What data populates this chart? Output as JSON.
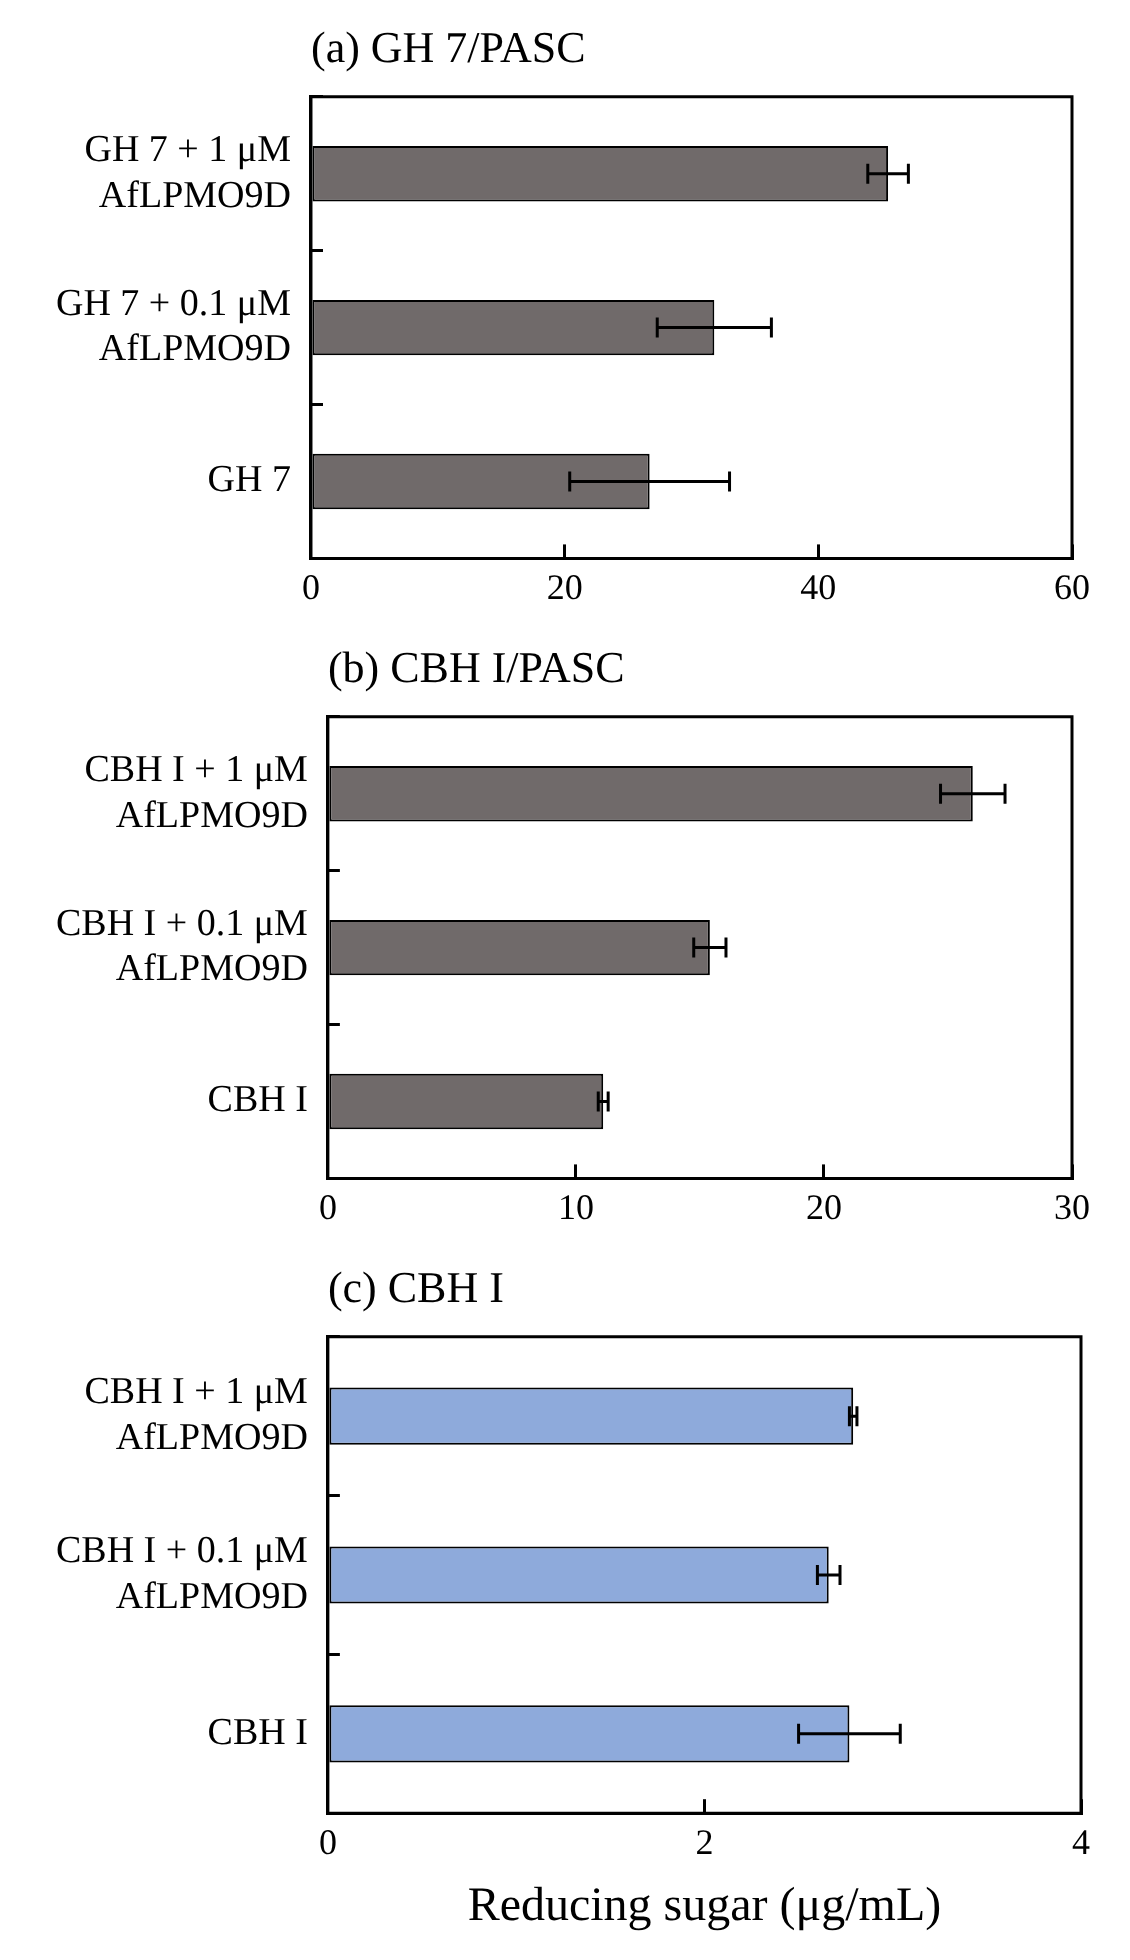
{
  "chart_data": [
    {
      "type": "bar",
      "orientation": "horizontal",
      "title": "(a) GH 7/PASC",
      "categories": [
        "GH 7 + 1 μM AfLPMO9D",
        "GH 7 + 0.1 μM AfLPMO9D",
        "GH 7"
      ],
      "values": [
        45.5,
        31.8,
        26.7
      ],
      "errors": [
        1.6,
        4.5,
        6.3
      ],
      "color": "#706a6a",
      "xlim": [
        0,
        60
      ],
      "xticks": [
        0,
        20,
        40,
        60
      ],
      "grid": false,
      "legend": false
    },
    {
      "type": "bar",
      "orientation": "horizontal",
      "title": "(b) CBH I/PASC",
      "categories": [
        "CBH I + 1 μM AfLPMO9D",
        "CBH I + 0.1 μM AfLPMO9D",
        "CBH I"
      ],
      "values": [
        26.0,
        15.4,
        11.1
      ],
      "errors": [
        1.3,
        0.65,
        0.2
      ],
      "color": "#706a6a",
      "xlim": [
        0,
        30
      ],
      "xticks": [
        0,
        10,
        20,
        30
      ],
      "grid": false,
      "legend": false
    },
    {
      "type": "bar",
      "orientation": "horizontal",
      "title": "(c) CBH I",
      "xlabel": "Reducing sugar (μg/mL)",
      "categories": [
        "CBH I + 1 μM AfLPMO9D",
        "CBH I + 0.1 μM AfLPMO9D",
        "CBH I"
      ],
      "values": [
        2.79,
        2.66,
        2.77
      ],
      "errors": [
        0.02,
        0.06,
        0.27
      ],
      "color": "#8eaadb",
      "xlim": [
        0,
        4
      ],
      "xticks": [
        0,
        2,
        4
      ],
      "grid": false,
      "legend": false
    }
  ]
}
